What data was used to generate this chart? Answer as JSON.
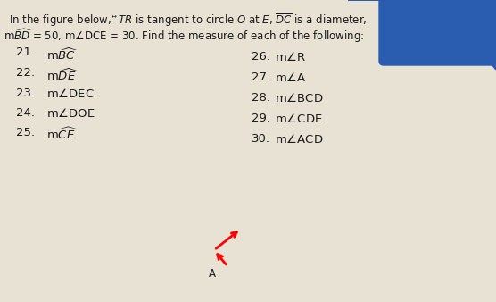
{
  "bg_color": "#d8d0c0",
  "paper_color": "#e8e2d5",
  "text_color": "#1a1a1a",
  "blue_corner_color": "#2a5db0",
  "font_size_header": 8.5,
  "font_size_items": 9.5,
  "header_line1_left": "In the figure below, ",
  "header_line1_mid": "TR",
  "header_line1_right": " is tangent to circle ",
  "header_full1": "In the figure below, $\\overleftrightarrow{TR}$ is tangent to circle $O$ at $E$, $\\overline{DC}$ is a diameter,",
  "header_full2": "m$\\widehat{BD}$ = 50, m$\\angle$DCE = 30. Find the measure of each of the following:",
  "items_left": [
    {
      "num": "21.",
      "text": "m$\\widehat{BC}$"
    },
    {
      "num": "22.",
      "text": "m$\\widehat{DE}$"
    },
    {
      "num": "23.",
      "text": "m$\\angle$DEC"
    },
    {
      "num": "24.",
      "text": "m$\\angle$DOE"
    },
    {
      "num": "25.",
      "text": "m$\\widehat{CE}$"
    }
  ],
  "items_right": [
    {
      "num": "26.",
      "text": "m$\\angle$R"
    },
    {
      "num": "27.",
      "text": "m$\\angle$A"
    },
    {
      "num": "28.",
      "text": "m$\\angle$BCD"
    },
    {
      "num": "29.",
      "text": "m$\\angle$CDE"
    },
    {
      "num": "30.",
      "text": "m$\\angle$ACD"
    }
  ]
}
